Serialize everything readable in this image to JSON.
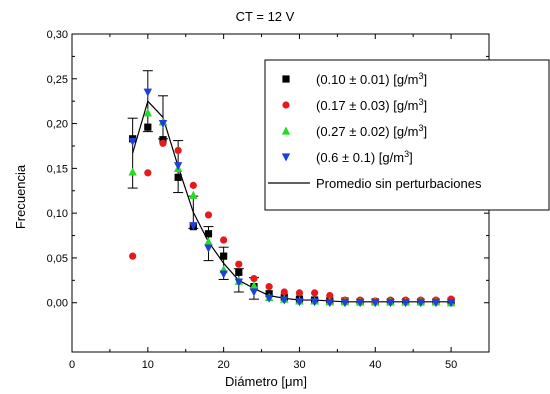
{
  "chart_data": {
    "type": "scatter",
    "title": "CT = 12 V",
    "xlabel": "Diámetro [μm]",
    "ylabel": "Frecuencia",
    "xlim": [
      0,
      55
    ],
    "ylim": [
      -0.055,
      0.3
    ],
    "xticks": [
      0,
      10,
      20,
      30,
      40,
      50
    ],
    "yticks": [
      0.0,
      0.05,
      0.1,
      0.15,
      0.2,
      0.25,
      0.3
    ],
    "xtick_labels": [
      "0",
      "10",
      "20",
      "30",
      "40",
      "50"
    ],
    "ytick_labels": [
      "0,00",
      "0,05",
      "0,10",
      "0,15",
      "0,20",
      "0,25",
      "0,30"
    ],
    "legend_position": "top-right",
    "grid": false,
    "x": [
      8,
      10,
      12,
      14,
      16,
      18,
      20,
      22,
      24,
      26,
      28,
      30,
      32,
      34,
      36,
      38,
      40,
      42,
      44,
      46,
      48,
      50
    ],
    "series": [
      {
        "name": "(0.10 ± 0.01) [g/m",
        "sup": "3",
        "name_end": "]",
        "marker": "square",
        "color": "#000000",
        "values": [
          0.183,
          0.196,
          0.182,
          0.14,
          0.085,
          0.077,
          0.052,
          0.034,
          0.018,
          0.01,
          0.006,
          0.004,
          0.003,
          0.002,
          0.002,
          0.001,
          0.001,
          0.001,
          0.001,
          0.001,
          0.001,
          0.002
        ]
      },
      {
        "name": "(0.17 ± 0.03) [g/m",
        "sup": "3",
        "name_end": "]",
        "marker": "circle",
        "color": "#e41a1c",
        "values": [
          0.052,
          0.145,
          0.178,
          0.17,
          0.131,
          0.098,
          0.07,
          0.043,
          0.027,
          0.018,
          0.012,
          0.011,
          0.011,
          0.008,
          0.003,
          0.003,
          0.002,
          0.003,
          0.003,
          0.003,
          0.003,
          0.004
        ]
      },
      {
        "name": "(0.27 ± 0.02) [g/m",
        "sup": "3",
        "name_end": "]",
        "marker": "triangle-up",
        "color": "#22dd22",
        "values": [
          0.146,
          0.212,
          0.202,
          0.15,
          0.12,
          0.068,
          0.037,
          0.024,
          0.019,
          0.006,
          0.004,
          0.002,
          0.002,
          0.001,
          0.001,
          0.001,
          0.001,
          0.001,
          0.001,
          0.001,
          0.001,
          0.0
        ]
      },
      {
        "name": "(0.6 ± 0.1) [g/m",
        "sup": "3",
        "name_end": "]",
        "marker": "triangle-down",
        "color": "#1f3fe0",
        "values": [
          0.18,
          0.235,
          0.2,
          0.153,
          0.086,
          0.061,
          0.032,
          0.023,
          0.012,
          0.005,
          0.003,
          0.001,
          0.001,
          0.0,
          0.0,
          0.0,
          0.0,
          0.0,
          0.0,
          0.0,
          0.0,
          0.0
        ]
      }
    ],
    "average_line": {
      "name": "Promedio sin perturbaciones",
      "color": "#000000",
      "values": [
        0.167,
        0.225,
        0.207,
        0.152,
        0.101,
        0.068,
        0.044,
        0.025,
        0.016,
        0.008,
        0.005,
        0.003,
        0.003,
        0.002,
        0.001,
        0.001,
        0.001,
        0.001,
        0.001,
        0.001,
        0.001,
        0.001
      ],
      "error_bars": [
        {
          "x": 8,
          "low": 0.128,
          "high": 0.206
        },
        {
          "x": 10,
          "low": 0.191,
          "high": 0.259
        },
        {
          "x": 12,
          "low": 0.183,
          "high": 0.231
        },
        {
          "x": 14,
          "low": 0.123,
          "high": 0.181
        },
        {
          "x": 16,
          "low": 0.083,
          "high": 0.119
        },
        {
          "x": 18,
          "low": 0.047,
          "high": 0.085
        },
        {
          "x": 20,
          "low": 0.026,
          "high": 0.062
        },
        {
          "x": 22,
          "low": 0.012,
          "high": 0.038
        },
        {
          "x": 24,
          "low": 0.004,
          "high": 0.028
        }
      ]
    }
  }
}
